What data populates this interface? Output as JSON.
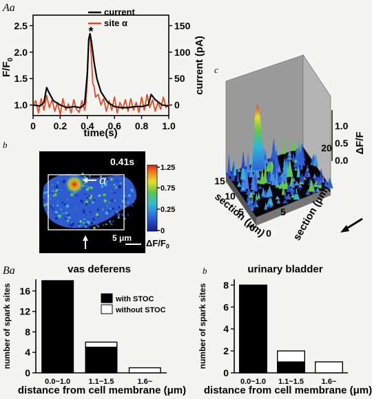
{
  "panels": {
    "Aa": "Aa",
    "Ab": "b",
    "Ac": "c",
    "Ba": "Ba",
    "Bb": "b"
  },
  "chart_data": [
    {
      "id": "Aa",
      "type": "line",
      "xlabel": "time(s)",
      "ylabel_left": "F/F",
      "ylabel_left_sub": "0",
      "ylabel_right": "current (pA)",
      "x_ticks": [
        "0",
        "0.2",
        "0.4",
        "0.6",
        "0.8",
        "1.0"
      ],
      "y_left_ticks": [
        "1.0",
        "1.5",
        "2.0",
        "2.5"
      ],
      "y_right_ticks": [
        "0",
        "50",
        "100",
        "150"
      ],
      "xlim": [
        0,
        1.0
      ],
      "ylim_left": [
        0.8,
        2.7
      ],
      "ylim_right": [
        -20,
        170
      ],
      "annotation": "*",
      "legend": [
        "current",
        "site α"
      ],
      "series": [
        {
          "name": "current",
          "color": "#000000",
          "x": [
            0.0,
            0.05,
            0.08,
            0.1,
            0.12,
            0.15,
            0.2,
            0.25,
            0.3,
            0.35,
            0.38,
            0.4,
            0.41,
            0.42,
            0.43,
            0.45,
            0.47,
            0.5,
            0.55,
            0.6,
            0.65,
            0.7,
            0.75,
            0.8,
            0.85,
            0.87,
            0.9,
            0.95,
            1.0
          ],
          "y": [
            1.0,
            0.98,
            1.05,
            1.33,
            1.22,
            1.08,
            1.0,
            0.95,
            0.97,
            0.95,
            1.02,
            1.6,
            2.25,
            2.35,
            2.2,
            1.8,
            1.5,
            1.25,
            1.05,
            0.97,
            0.95,
            0.95,
            0.97,
            0.97,
            1.0,
            1.2,
            1.1,
            1.0,
            0.98
          ]
        },
        {
          "name": "site α",
          "color": "#e8491f",
          "x": [
            0.0,
            0.02,
            0.04,
            0.06,
            0.08,
            0.1,
            0.12,
            0.14,
            0.16,
            0.18,
            0.2,
            0.22,
            0.24,
            0.26,
            0.28,
            0.3,
            0.32,
            0.34,
            0.36,
            0.38,
            0.39,
            0.4,
            0.41,
            0.42,
            0.43,
            0.44,
            0.45,
            0.46,
            0.48,
            0.5,
            0.52,
            0.54,
            0.56,
            0.58,
            0.6,
            0.62,
            0.64,
            0.66,
            0.68,
            0.7,
            0.72,
            0.74,
            0.76,
            0.78,
            0.8,
            0.82,
            0.84,
            0.86,
            0.88,
            0.9,
            0.92,
            0.94,
            0.96,
            0.98,
            1.0
          ],
          "y": [
            1.0,
            1.08,
            0.85,
            1.12,
            0.9,
            1.18,
            0.95,
            1.1,
            0.88,
            1.05,
            0.82,
            1.12,
            0.9,
            1.02,
            0.85,
            1.1,
            0.92,
            0.86,
            1.08,
            0.9,
            1.05,
            1.5,
            2.2,
            2.32,
            1.9,
            1.4,
            1.35,
            1.15,
            1.2,
            1.0,
            1.12,
            0.88,
            1.08,
            0.9,
            1.15,
            0.85,
            1.05,
            0.92,
            1.1,
            0.88,
            1.12,
            0.9,
            1.05,
            0.86,
            1.15,
            0.9,
            1.2,
            0.95,
            1.1,
            0.88,
            1.05,
            0.92,
            1.15,
            0.95,
            1.02
          ]
        }
      ]
    },
    {
      "id": "Ab",
      "type": "heatmap",
      "title": "0.41s",
      "colorbar_ticks": [
        "1.25",
        "0.75",
        "0.25",
        "0"
      ],
      "colorbar_label": "ΔF/F",
      "colorbar_label_sub": "0",
      "scale_bar": "5 μm",
      "site_label": "α"
    },
    {
      "id": "Ac",
      "type": "surface",
      "zlabel": "ΔF/F",
      "z_ticks": [
        "0.0",
        "0.5",
        "1.0"
      ],
      "x_label": "section (μm)",
      "x_ticks": [
        "0",
        "5",
        "10",
        "15"
      ],
      "y_label": "section (μm)",
      "y_ticks": [
        "0",
        "5",
        "10",
        "15",
        "20"
      ]
    },
    {
      "id": "Ba",
      "type": "bar",
      "title": "vas deferens",
      "ylabel": "number of spark sites",
      "xlabel": "distance from cell membrane (μm)",
      "categories": [
        "0.0~1.0",
        "1.1~1.5",
        "1.6~"
      ],
      "ylim": [
        0,
        18
      ],
      "y_ticks": [
        "0",
        "4",
        "8",
        "12",
        "16"
      ],
      "series": [
        {
          "name": "with STOC",
          "color": "#000000",
          "values": [
            18,
            5,
            0
          ]
        },
        {
          "name": "without STOC",
          "color": "#ffffff",
          "values": [
            0,
            1,
            1
          ]
        }
      ]
    },
    {
      "id": "Bb",
      "type": "bar",
      "title": "urinary bladder",
      "ylabel": "number of spark sites",
      "xlabel": "distance from cell membrane (μm)",
      "categories": [
        "0.0~1.0",
        "1.1~1.5",
        "1.6~"
      ],
      "ylim": [
        0,
        8.4
      ],
      "y_ticks": [
        "0",
        "2",
        "4",
        "6",
        "8"
      ],
      "series": [
        {
          "name": "with STOC",
          "color": "#000000",
          "values": [
            8,
            1,
            0
          ]
        },
        {
          "name": "without STOC",
          "color": "#ffffff",
          "values": [
            0,
            1,
            1
          ]
        }
      ]
    }
  ]
}
